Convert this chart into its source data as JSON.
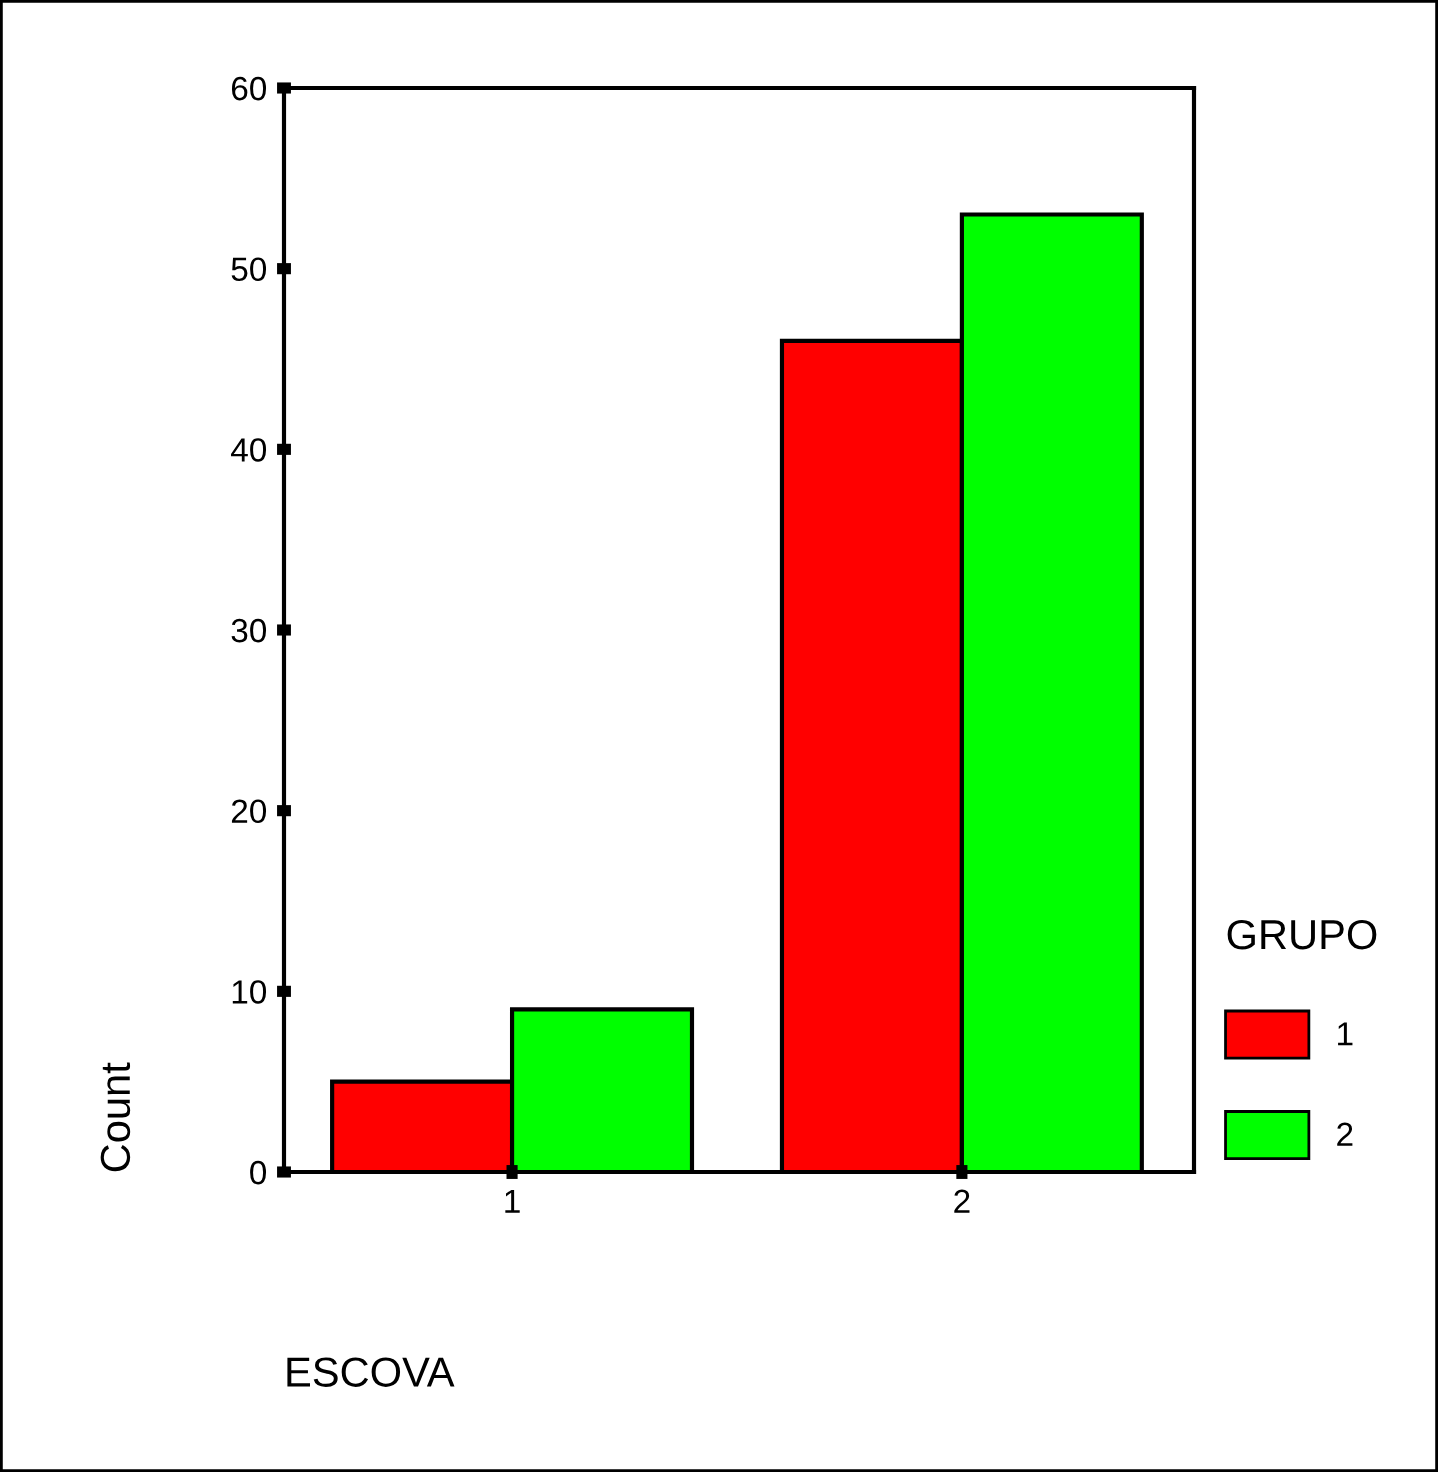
{
  "chart_data": {
    "type": "bar",
    "categories": [
      "1",
      "2"
    ],
    "xlabel": "ESCOVA",
    "ylabel": "Count",
    "legend_title": "GRUPO",
    "series": [
      {
        "name": "1",
        "color": "#ff0000",
        "values": [
          5,
          46
        ]
      },
      {
        "name": "2",
        "color": "#00ff00",
        "values": [
          9,
          53
        ]
      }
    ],
    "ylim": [
      0,
      60
    ],
    "yticks": [
      0,
      10,
      20,
      30,
      40,
      50,
      60
    ],
    "grid": false,
    "legend": "bottom right"
  }
}
